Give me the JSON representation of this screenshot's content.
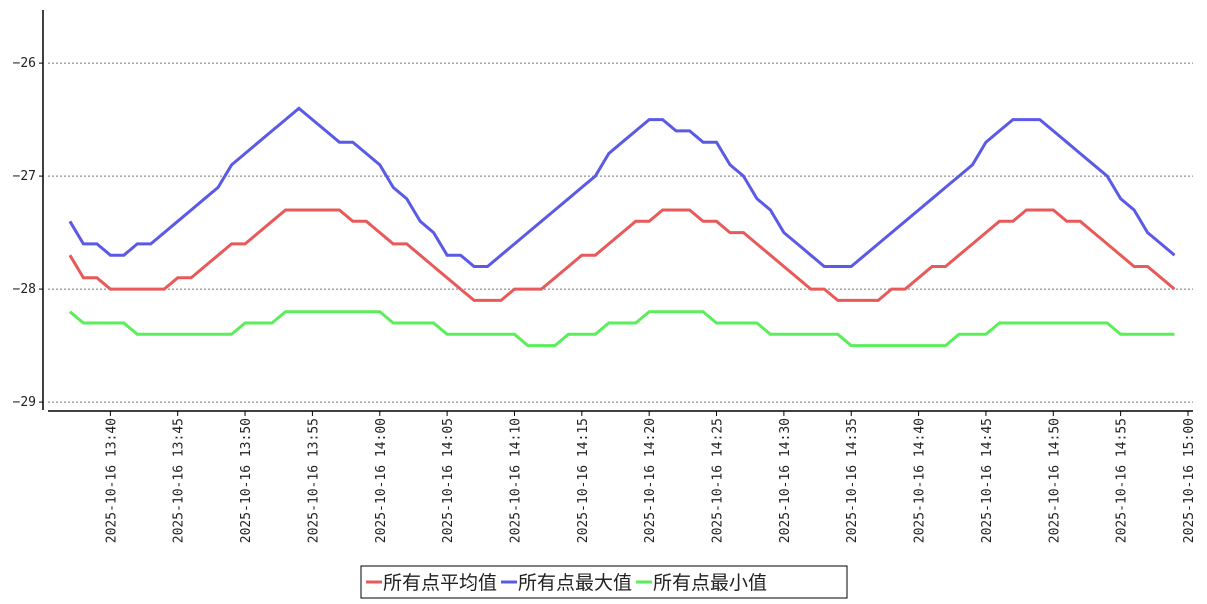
{
  "chart_data": {
    "type": "line",
    "x": [
      "2025-10-16 13:37",
      "2025-10-16 13:38",
      "2025-10-16 13:39",
      "2025-10-16 13:40",
      "2025-10-16 13:41",
      "2025-10-16 13:42",
      "2025-10-16 13:43",
      "2025-10-16 13:44",
      "2025-10-16 13:45",
      "2025-10-16 13:46",
      "2025-10-16 13:47",
      "2025-10-16 13:48",
      "2025-10-16 13:49",
      "2025-10-16 13:50",
      "2025-10-16 13:51",
      "2025-10-16 13:52",
      "2025-10-16 13:53",
      "2025-10-16 13:54",
      "2025-10-16 13:55",
      "2025-10-16 13:56",
      "2025-10-16 13:57",
      "2025-10-16 13:58",
      "2025-10-16 13:59",
      "2025-10-16 14:00",
      "2025-10-16 14:01",
      "2025-10-16 14:02",
      "2025-10-16 14:03",
      "2025-10-16 14:04",
      "2025-10-16 14:05",
      "2025-10-16 14:06",
      "2025-10-16 14:07",
      "2025-10-16 14:08",
      "2025-10-16 14:09",
      "2025-10-16 14:10",
      "2025-10-16 14:11",
      "2025-10-16 14:12",
      "2025-10-16 14:13",
      "2025-10-16 14:14",
      "2025-10-16 14:15",
      "2025-10-16 14:16",
      "2025-10-16 14:17",
      "2025-10-16 14:18",
      "2025-10-16 14:19",
      "2025-10-16 14:20",
      "2025-10-16 14:21",
      "2025-10-16 14:22",
      "2025-10-16 14:23",
      "2025-10-16 14:24",
      "2025-10-16 14:25",
      "2025-10-16 14:26",
      "2025-10-16 14:27",
      "2025-10-16 14:28",
      "2025-10-16 14:29",
      "2025-10-16 14:30",
      "2025-10-16 14:31",
      "2025-10-16 14:32",
      "2025-10-16 14:33",
      "2025-10-16 14:34",
      "2025-10-16 14:35",
      "2025-10-16 14:36",
      "2025-10-16 14:37",
      "2025-10-16 14:38",
      "2025-10-16 14:39",
      "2025-10-16 14:40",
      "2025-10-16 14:41",
      "2025-10-16 14:42",
      "2025-10-16 14:43",
      "2025-10-16 14:44",
      "2025-10-16 14:45",
      "2025-10-16 14:46",
      "2025-10-16 14:47",
      "2025-10-16 14:48",
      "2025-10-16 14:49",
      "2025-10-16 14:50",
      "2025-10-16 14:51",
      "2025-10-16 14:52",
      "2025-10-16 14:53",
      "2025-10-16 14:54",
      "2025-10-16 14:55",
      "2025-10-16 14:56",
      "2025-10-16 14:57",
      "2025-10-16 14:58",
      "2025-10-16 14:59"
    ],
    "series": [
      {
        "name": "所有点平均值",
        "color": "#e85a5a",
        "values": [
          -27.7,
          -27.9,
          -27.9,
          -28.0,
          -28.0,
          -28.0,
          -28.0,
          -28.0,
          -27.9,
          -27.9,
          -27.8,
          -27.7,
          -27.6,
          -27.6,
          -27.5,
          -27.4,
          -27.3,
          -27.3,
          -27.3,
          -27.3,
          -27.3,
          -27.4,
          -27.4,
          -27.5,
          -27.6,
          -27.6,
          -27.7,
          -27.8,
          -27.9,
          -28.0,
          -28.1,
          -28.1,
          -28.1,
          -28.0,
          -28.0,
          -28.0,
          -27.9,
          -27.8,
          -27.7,
          -27.7,
          -27.6,
          -27.5,
          -27.4,
          -27.4,
          -27.3,
          -27.3,
          -27.3,
          -27.4,
          -27.4,
          -27.5,
          -27.5,
          -27.6,
          -27.7,
          -27.8,
          -27.9,
          -28.0,
          -28.0,
          -28.1,
          -28.1,
          -28.1,
          -28.1,
          -28.0,
          -28.0,
          -27.9,
          -27.8,
          -27.8,
          -27.7,
          -27.6,
          -27.5,
          -27.4,
          -27.4,
          -27.3,
          -27.3,
          -27.3,
          -27.4,
          -27.4,
          -27.5,
          -27.6,
          -27.7,
          -27.8,
          -27.8,
          -27.9,
          -28.0
        ]
      },
      {
        "name": "所有点最大值",
        "color": "#5a5ae6",
        "values": [
          -27.4,
          -27.6,
          -27.6,
          -27.7,
          -27.7,
          -27.6,
          -27.6,
          -27.5,
          -27.4,
          -27.3,
          -27.2,
          -27.1,
          -26.9,
          -26.8,
          -26.7,
          -26.6,
          -26.5,
          -26.4,
          -26.5,
          -26.6,
          -26.7,
          -26.7,
          -26.8,
          -26.9,
          -27.1,
          -27.2,
          -27.4,
          -27.5,
          -27.7,
          -27.7,
          -27.8,
          -27.8,
          -27.7,
          -27.6,
          -27.5,
          -27.4,
          -27.3,
          -27.2,
          -27.1,
          -27.0,
          -26.8,
          -26.7,
          -26.6,
          -26.5,
          -26.5,
          -26.6,
          -26.6,
          -26.7,
          -26.7,
          -26.9,
          -27.0,
          -27.2,
          -27.3,
          -27.5,
          -27.6,
          -27.7,
          -27.8,
          -27.8,
          -27.8,
          -27.7,
          -27.6,
          -27.5,
          -27.4,
          -27.3,
          -27.2,
          -27.1,
          -27.0,
          -26.9,
          -26.7,
          -26.6,
          -26.5,
          -26.5,
          -26.5,
          -26.6,
          -26.7,
          -26.8,
          -26.9,
          -27.0,
          -27.2,
          -27.3,
          -27.5,
          -27.6,
          -27.7
        ]
      },
      {
        "name": "所有点最小值",
        "color": "#5aee5a",
        "values": [
          -28.2,
          -28.3,
          -28.3,
          -28.3,
          -28.3,
          -28.4,
          -28.4,
          -28.4,
          -28.4,
          -28.4,
          -28.4,
          -28.4,
          -28.4,
          -28.3,
          -28.3,
          -28.3,
          -28.2,
          -28.2,
          -28.2,
          -28.2,
          -28.2,
          -28.2,
          -28.2,
          -28.2,
          -28.3,
          -28.3,
          -28.3,
          -28.3,
          -28.4,
          -28.4,
          -28.4,
          -28.4,
          -28.4,
          -28.4,
          -28.5,
          -28.5,
          -28.5,
          -28.4,
          -28.4,
          -28.4,
          -28.3,
          -28.3,
          -28.3,
          -28.2,
          -28.2,
          -28.2,
          -28.2,
          -28.2,
          -28.3,
          -28.3,
          -28.3,
          -28.3,
          -28.4,
          -28.4,
          -28.4,
          -28.4,
          -28.4,
          -28.4,
          -28.5,
          -28.5,
          -28.5,
          -28.5,
          -28.5,
          -28.5,
          -28.5,
          -28.5,
          -28.4,
          -28.4,
          -28.4,
          -28.3,
          -28.3,
          -28.3,
          -28.3,
          -28.3,
          -28.3,
          -28.3,
          -28.3,
          -28.3,
          -28.4,
          -28.4,
          -28.4,
          -28.4,
          -28.4
        ]
      }
    ],
    "xlim": [
      "2025-10-16 13:35",
      "2025-10-16 15:00"
    ],
    "xticks": [
      "2025-10-16 13:40",
      "2025-10-16 13:45",
      "2025-10-16 13:50",
      "2025-10-16 13:55",
      "2025-10-16 14:00",
      "2025-10-16 14:05",
      "2025-10-16 14:10",
      "2025-10-16 14:15",
      "2025-10-16 14:20",
      "2025-10-16 14:25",
      "2025-10-16 14:30",
      "2025-10-16 14:35",
      "2025-10-16 14:40",
      "2025-10-16 14:45",
      "2025-10-16 14:50",
      "2025-10-16 14:55",
      "2025-10-16 15:00"
    ],
    "ylim": [
      -29.07,
      -25.53
    ],
    "yticks": [
      {
        "value": -29,
        "label": "−29"
      },
      {
        "value": -28,
        "label": "−28"
      },
      {
        "value": -27,
        "label": "−27"
      },
      {
        "value": -26,
        "label": "−26"
      }
    ],
    "grid": true,
    "legend": "bottom"
  }
}
